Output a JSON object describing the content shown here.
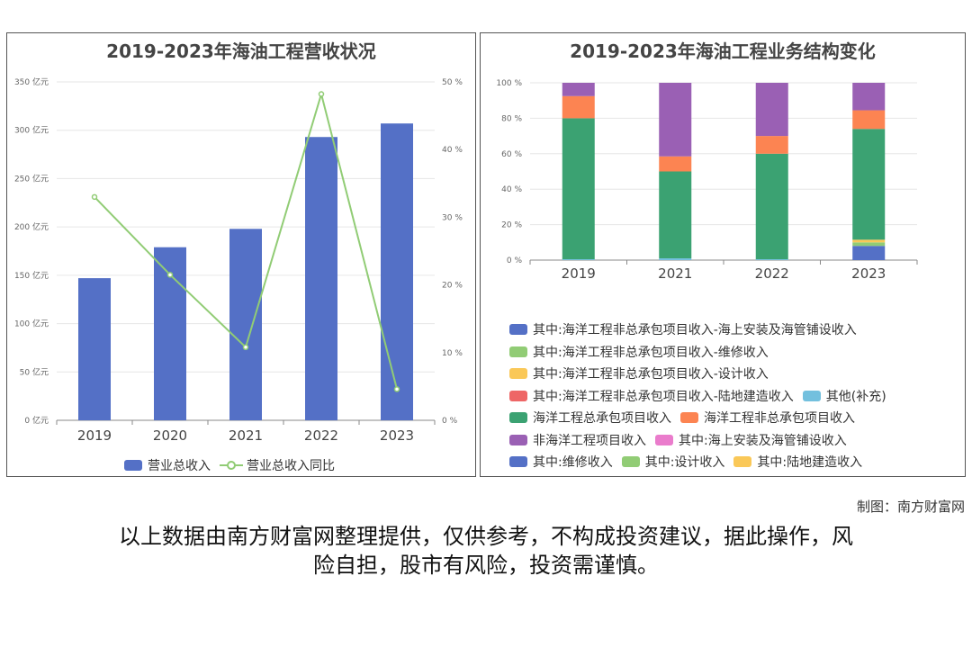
{
  "credit": "制图：南方财富网",
  "disclaimer_line1": "以上数据由南方财富网整理提供，仅供参考，不构成投资建议，据此操作，风",
  "disclaimer_line2": "险自担，股市有风险，投资需谨慎。",
  "watermark": "南方财富网",
  "chart_data": [
    {
      "type": "bar",
      "title": "2019-2023年海油工程营收状况",
      "categories": [
        "2019",
        "2020",
        "2021",
        "2022",
        "2023"
      ],
      "y_ticks": [
        "0 亿元",
        "50 亿元",
        "100 亿元",
        "150 亿元",
        "200 亿元",
        "250 亿元",
        "300 亿元",
        "350 亿元"
      ],
      "y2_ticks": [
        "0 %",
        "10 %",
        "20 %",
        "30 %",
        "40 %",
        "50 %"
      ],
      "ylim": [
        0,
        350
      ],
      "y2lim": [
        0,
        50
      ],
      "series": [
        {
          "name": "营业总收入",
          "kind": "bar",
          "color": "#5470c6",
          "values": [
            147,
            179,
            198,
            293,
            307
          ]
        },
        {
          "name": "营业总收入同比",
          "kind": "line",
          "color": "#91cc75",
          "values": [
            33,
            21.5,
            10.8,
            48.2,
            4.6
          ]
        }
      ],
      "legend": "bottom"
    },
    {
      "type": "bar",
      "stacked": true,
      "title": "2019-2023年海油工程业务结构变化",
      "categories": [
        "2019",
        "2021",
        "2022",
        "2023"
      ],
      "y_ticks": [
        "0 %",
        "20 %",
        "40 %",
        "60 %",
        "80 %",
        "100 %"
      ],
      "ylim": [
        0,
        100
      ],
      "series": [
        {
          "name": "其中:海洋工程非总承包项目收入-海上安装及海管铺设收入",
          "color": "#5470c6",
          "values": [
            0,
            0,
            0,
            8
          ]
        },
        {
          "name": "其中:海洋工程非总承包项目收入-维修收入",
          "color": "#91cc75",
          "values": [
            0,
            0,
            0,
            2
          ]
        },
        {
          "name": "其中:海洋工程非总承包项目收入-设计收入",
          "color": "#fac858",
          "values": [
            0,
            0,
            0,
            1.5
          ]
        },
        {
          "name": "其中:海洋工程非总承包项目收入-陆地建造收入",
          "color": "#ee6666",
          "values": [
            0,
            0,
            0,
            0
          ]
        },
        {
          "name": "其他(补充)",
          "color": "#73c0de",
          "values": [
            0.5,
            1,
            0.5,
            0
          ]
        },
        {
          "name": "海洋工程总承包项目收入",
          "color": "#3ba272",
          "values": [
            79.5,
            49,
            59.5,
            62.5
          ]
        },
        {
          "name": "海洋工程非总承包项目收入",
          "color": "#fc8452",
          "values": [
            12.5,
            8.5,
            10,
            10.5
          ]
        },
        {
          "name": "非海洋工程项目收入",
          "color": "#9a60b4",
          "values": [
            7.5,
            41.5,
            30,
            15.5
          ]
        },
        {
          "name": "其中:海上安装及海管铺设收入",
          "color": "#ea7ccc",
          "values": [
            0,
            0,
            0,
            0
          ]
        },
        {
          "name": "其中:维修收入",
          "color": "#5470c6",
          "values": [
            0,
            0,
            0,
            0
          ]
        },
        {
          "name": "其中:设计收入",
          "color": "#91cc75",
          "values": [
            0,
            0,
            0,
            0
          ]
        },
        {
          "name": "其中:陆地建造收入",
          "color": "#fac858",
          "values": [
            0,
            0,
            0,
            0
          ]
        }
      ],
      "legend": "bottom"
    }
  ]
}
